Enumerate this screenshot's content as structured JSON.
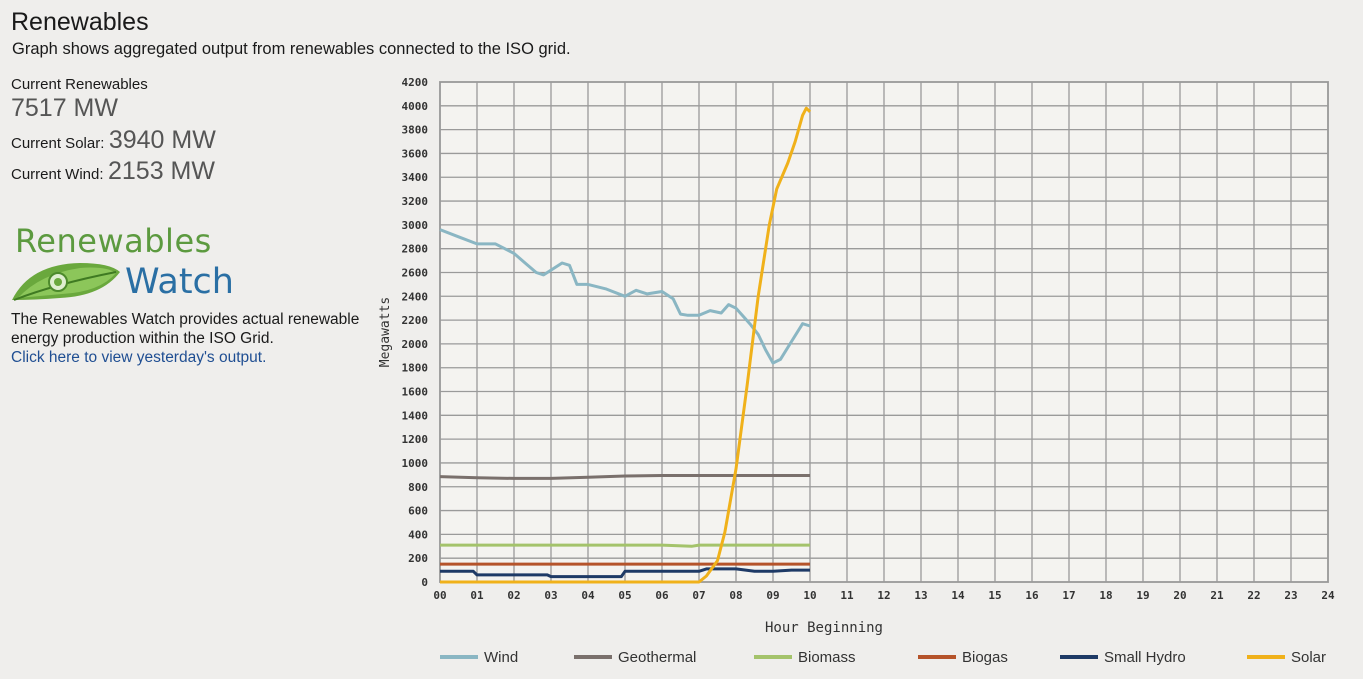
{
  "page": {
    "title": "Renewables",
    "subtitle": "Graph shows aggregated output from renewables connected to the ISO grid."
  },
  "stats": {
    "current_renewables_label": "Current Renewables",
    "current_renewables_value": "7517 MW",
    "current_solar_label": "Current Solar:",
    "current_solar_value": "3940 MW",
    "current_wind_label": "Current Wind:",
    "current_wind_value": "2153 MW"
  },
  "logo": {
    "line1": "Renewables",
    "line2": "Watch"
  },
  "description": {
    "text": "The Renewables Watch provides actual renewable energy production within the ISO Grid.",
    "link": "Click here to view yesterday's output."
  },
  "colors": {
    "wind": "#8ab6c3",
    "geothermal": "#7a706c",
    "biomass": "#a4c36b",
    "biogas": "#b5532a",
    "small_hydro": "#1e3a66",
    "solar": "#f0b11a",
    "grid": "#9a9a9a"
  },
  "chart_data": {
    "type": "line",
    "xlabel": "Hour Beginning",
    "ylabel": "Megawatts",
    "xlim": [
      0,
      24
    ],
    "ylim": [
      0,
      4200
    ],
    "x_ticks": [
      "00",
      "01",
      "02",
      "03",
      "04",
      "05",
      "06",
      "07",
      "08",
      "09",
      "10",
      "11",
      "12",
      "13",
      "14",
      "15",
      "16",
      "17",
      "18",
      "19",
      "20",
      "21",
      "22",
      "23",
      "24"
    ],
    "y_ticks": [
      0,
      200,
      400,
      600,
      800,
      1000,
      1200,
      1400,
      1600,
      1800,
      2000,
      2200,
      2400,
      2600,
      2800,
      3000,
      3200,
      3400,
      3600,
      3800,
      4000,
      4200
    ],
    "grid": true,
    "legend_position": "bottom",
    "series": [
      {
        "name": "Wind",
        "color": "#8ab6c3",
        "x": [
          0,
          0.5,
          1,
          1.5,
          2,
          2.3,
          2.6,
          2.8,
          3,
          3.3,
          3.5,
          3.7,
          4,
          4.5,
          5,
          5.3,
          5.6,
          6,
          6.3,
          6.5,
          6.7,
          7,
          7.3,
          7.6,
          7.8,
          8,
          8.2,
          8.4,
          8.6,
          8.8,
          9,
          9.2,
          9.5,
          9.8,
          10
        ],
        "y": [
          2960,
          2900,
          2840,
          2840,
          2760,
          2680,
          2600,
          2580,
          2620,
          2680,
          2660,
          2500,
          2500,
          2460,
          2400,
          2450,
          2420,
          2440,
          2380,
          2250,
          2240,
          2240,
          2280,
          2260,
          2330,
          2300,
          2230,
          2160,
          2080,
          1950,
          1840,
          1870,
          2020,
          2170,
          2150
        ]
      },
      {
        "name": "Geothermal",
        "color": "#7a706c",
        "x": [
          0,
          1,
          2,
          3,
          4,
          5,
          6,
          7,
          8,
          9,
          10
        ],
        "y": [
          885,
          875,
          870,
          870,
          880,
          890,
          895,
          895,
          895,
          895,
          895
        ]
      },
      {
        "name": "Biomass",
        "color": "#a4c36b",
        "x": [
          0,
          1,
          2,
          3,
          4,
          5,
          6,
          6.8,
          7,
          8,
          9,
          10
        ],
        "y": [
          310,
          310,
          310,
          310,
          310,
          310,
          310,
          300,
          310,
          310,
          310,
          310
        ]
      },
      {
        "name": "Biogas",
        "color": "#b5532a",
        "x": [
          0,
          2,
          4,
          6,
          8,
          10
        ],
        "y": [
          150,
          150,
          150,
          150,
          150,
          150
        ]
      },
      {
        "name": "Small Hydro",
        "color": "#1e3a66",
        "x": [
          0,
          0.9,
          1,
          2.9,
          3,
          4.9,
          5,
          7,
          7.2,
          8,
          8.5,
          9,
          9.5,
          10
        ],
        "y": [
          90,
          90,
          60,
          60,
          45,
          45,
          90,
          90,
          110,
          110,
          90,
          90,
          100,
          100
        ]
      },
      {
        "name": "Solar",
        "color": "#f0b11a",
        "x": [
          0,
          6,
          7,
          7.2,
          7.5,
          7.7,
          8,
          8.3,
          8.6,
          8.9,
          9.1,
          9.4,
          9.6,
          9.8,
          9.9,
          10
        ],
        "y": [
          0,
          0,
          0,
          50,
          180,
          420,
          950,
          1650,
          2400,
          3000,
          3300,
          3520,
          3700,
          3920,
          3980,
          3950
        ]
      }
    ]
  }
}
